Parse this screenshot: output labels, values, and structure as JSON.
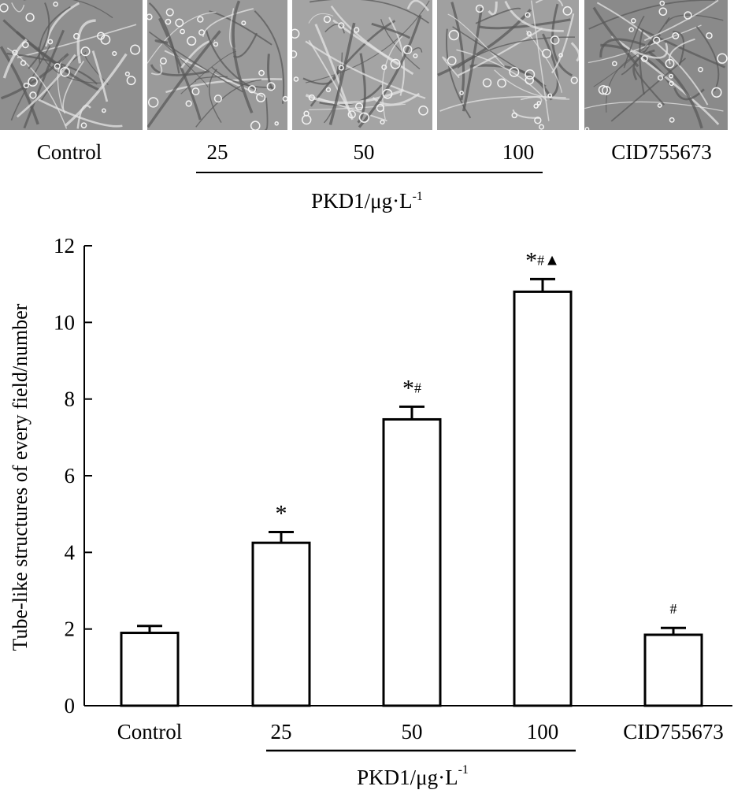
{
  "micrographs": {
    "panels": [
      {
        "label": "Control",
        "tone": "#8f8f8f"
      },
      {
        "label": "25",
        "tone": "#9a9a9a"
      },
      {
        "label": "50",
        "tone": "#a4a4a4"
      },
      {
        "label": "100",
        "tone": "#a0a0a0"
      },
      {
        "label": "CID755673",
        "tone": "#8a8a8a"
      }
    ],
    "group_label": "PKD1/μg·L",
    "group_label_sup": "-1"
  },
  "chart_data": {
    "type": "bar",
    "categories": [
      "Control",
      "25",
      "50",
      "100",
      "CID755673"
    ],
    "values": [
      1.9,
      4.25,
      7.47,
      10.8,
      1.85
    ],
    "errors": [
      0.18,
      0.28,
      0.33,
      0.33,
      0.18
    ],
    "annotations": [
      "",
      "*",
      "*#",
      "*#▲",
      "#"
    ],
    "ylabel": "Tube-like structures of every field/number",
    "yticks": [
      "0",
      "2",
      "4",
      "6",
      "8",
      "10",
      "12"
    ],
    "ylim": [
      0,
      12
    ],
    "group_label": "PKD1/μg·L",
    "group_label_sup": "-1",
    "grid": false,
    "legend": "none",
    "bar_fill": "#ffffff",
    "bar_stroke": "#000000"
  }
}
